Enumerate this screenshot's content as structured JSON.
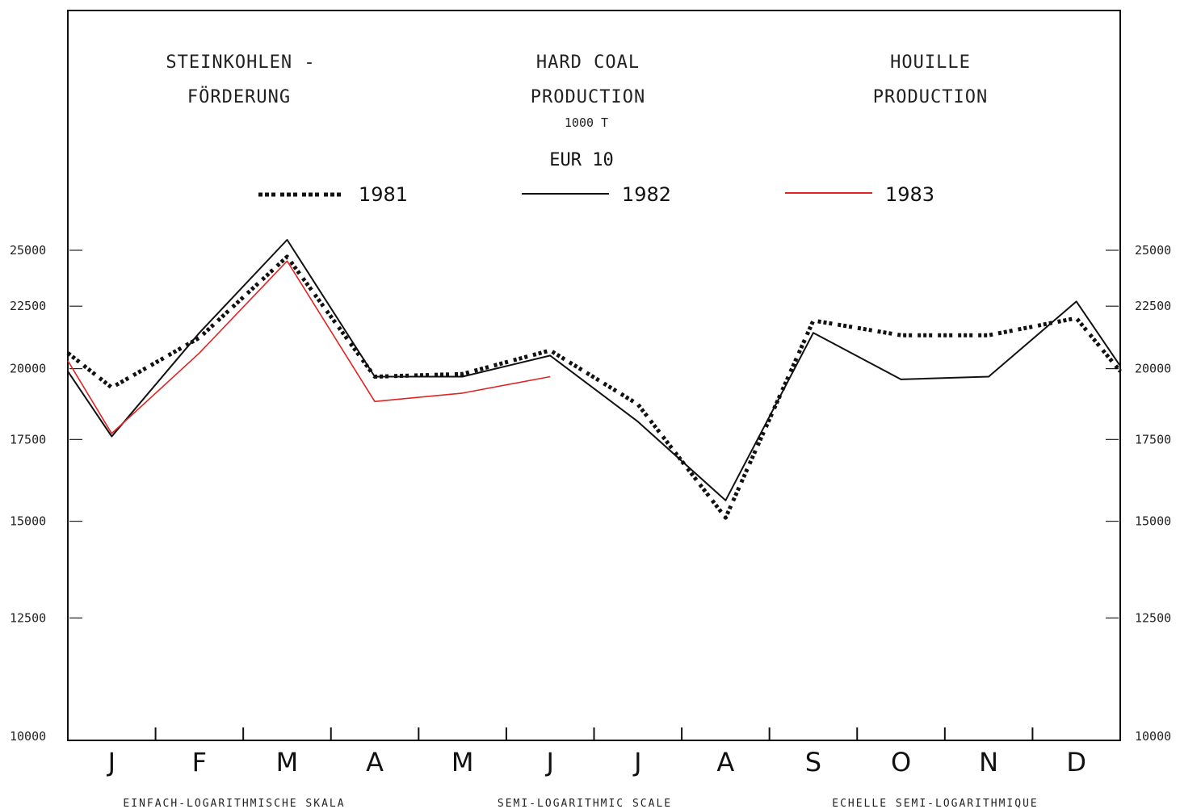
{
  "chart_data": {
    "type": "line",
    "title_de": [
      "STEINKOHLEN -",
      "FÖRDERUNG"
    ],
    "title_en": [
      "HARD COAL",
      "PRODUCTION"
    ],
    "title_fr": [
      "HOUILLE",
      "PRODUCTION"
    ],
    "unit": "1000 T",
    "region": "EUR 10",
    "categories": [
      "J",
      "F",
      "M",
      "A",
      "M",
      "J",
      "J",
      "A",
      "S",
      "O",
      "N",
      "D"
    ],
    "y_scale": "log",
    "ylim": [
      10000,
      25000
    ],
    "y_ticks": [
      "25000",
      "22500",
      "20000",
      "17500",
      "15000",
      "12500",
      "10000"
    ],
    "y_tick_values": [
      25000,
      22500,
      20000,
      17500,
      15000,
      12500,
      10000
    ],
    "footer": {
      "de": "EINFACH-LOGARITHMISCHE SKALA",
      "en": "SEMI-LOGARITHMIC SCALE",
      "fr": "ECHELLE SEMI-LOGARITHMIQUE"
    },
    "series": [
      {
        "name": "1981",
        "style": "dotted",
        "color": "#111111",
        "start": 20600,
        "values": [
          19300,
          21200,
          24700,
          19700,
          19800,
          20700,
          18700,
          15100,
          21900,
          21300,
          21300,
          22000
        ],
        "end": 19900
      },
      {
        "name": "1982",
        "style": "solid",
        "color": "#111111",
        "start": 19900,
        "values": [
          17600,
          21400,
          25500,
          19700,
          19700,
          20500,
          18100,
          15600,
          21400,
          19600,
          19700,
          22700
        ],
        "end": 20100
      },
      {
        "name": "1983",
        "style": "solid",
        "color": "#e02424",
        "start": 20300,
        "values": [
          17700,
          20600,
          24500,
          18800,
          19100,
          19700,
          null,
          null,
          null,
          null,
          null,
          null
        ],
        "end": null
      }
    ]
  }
}
